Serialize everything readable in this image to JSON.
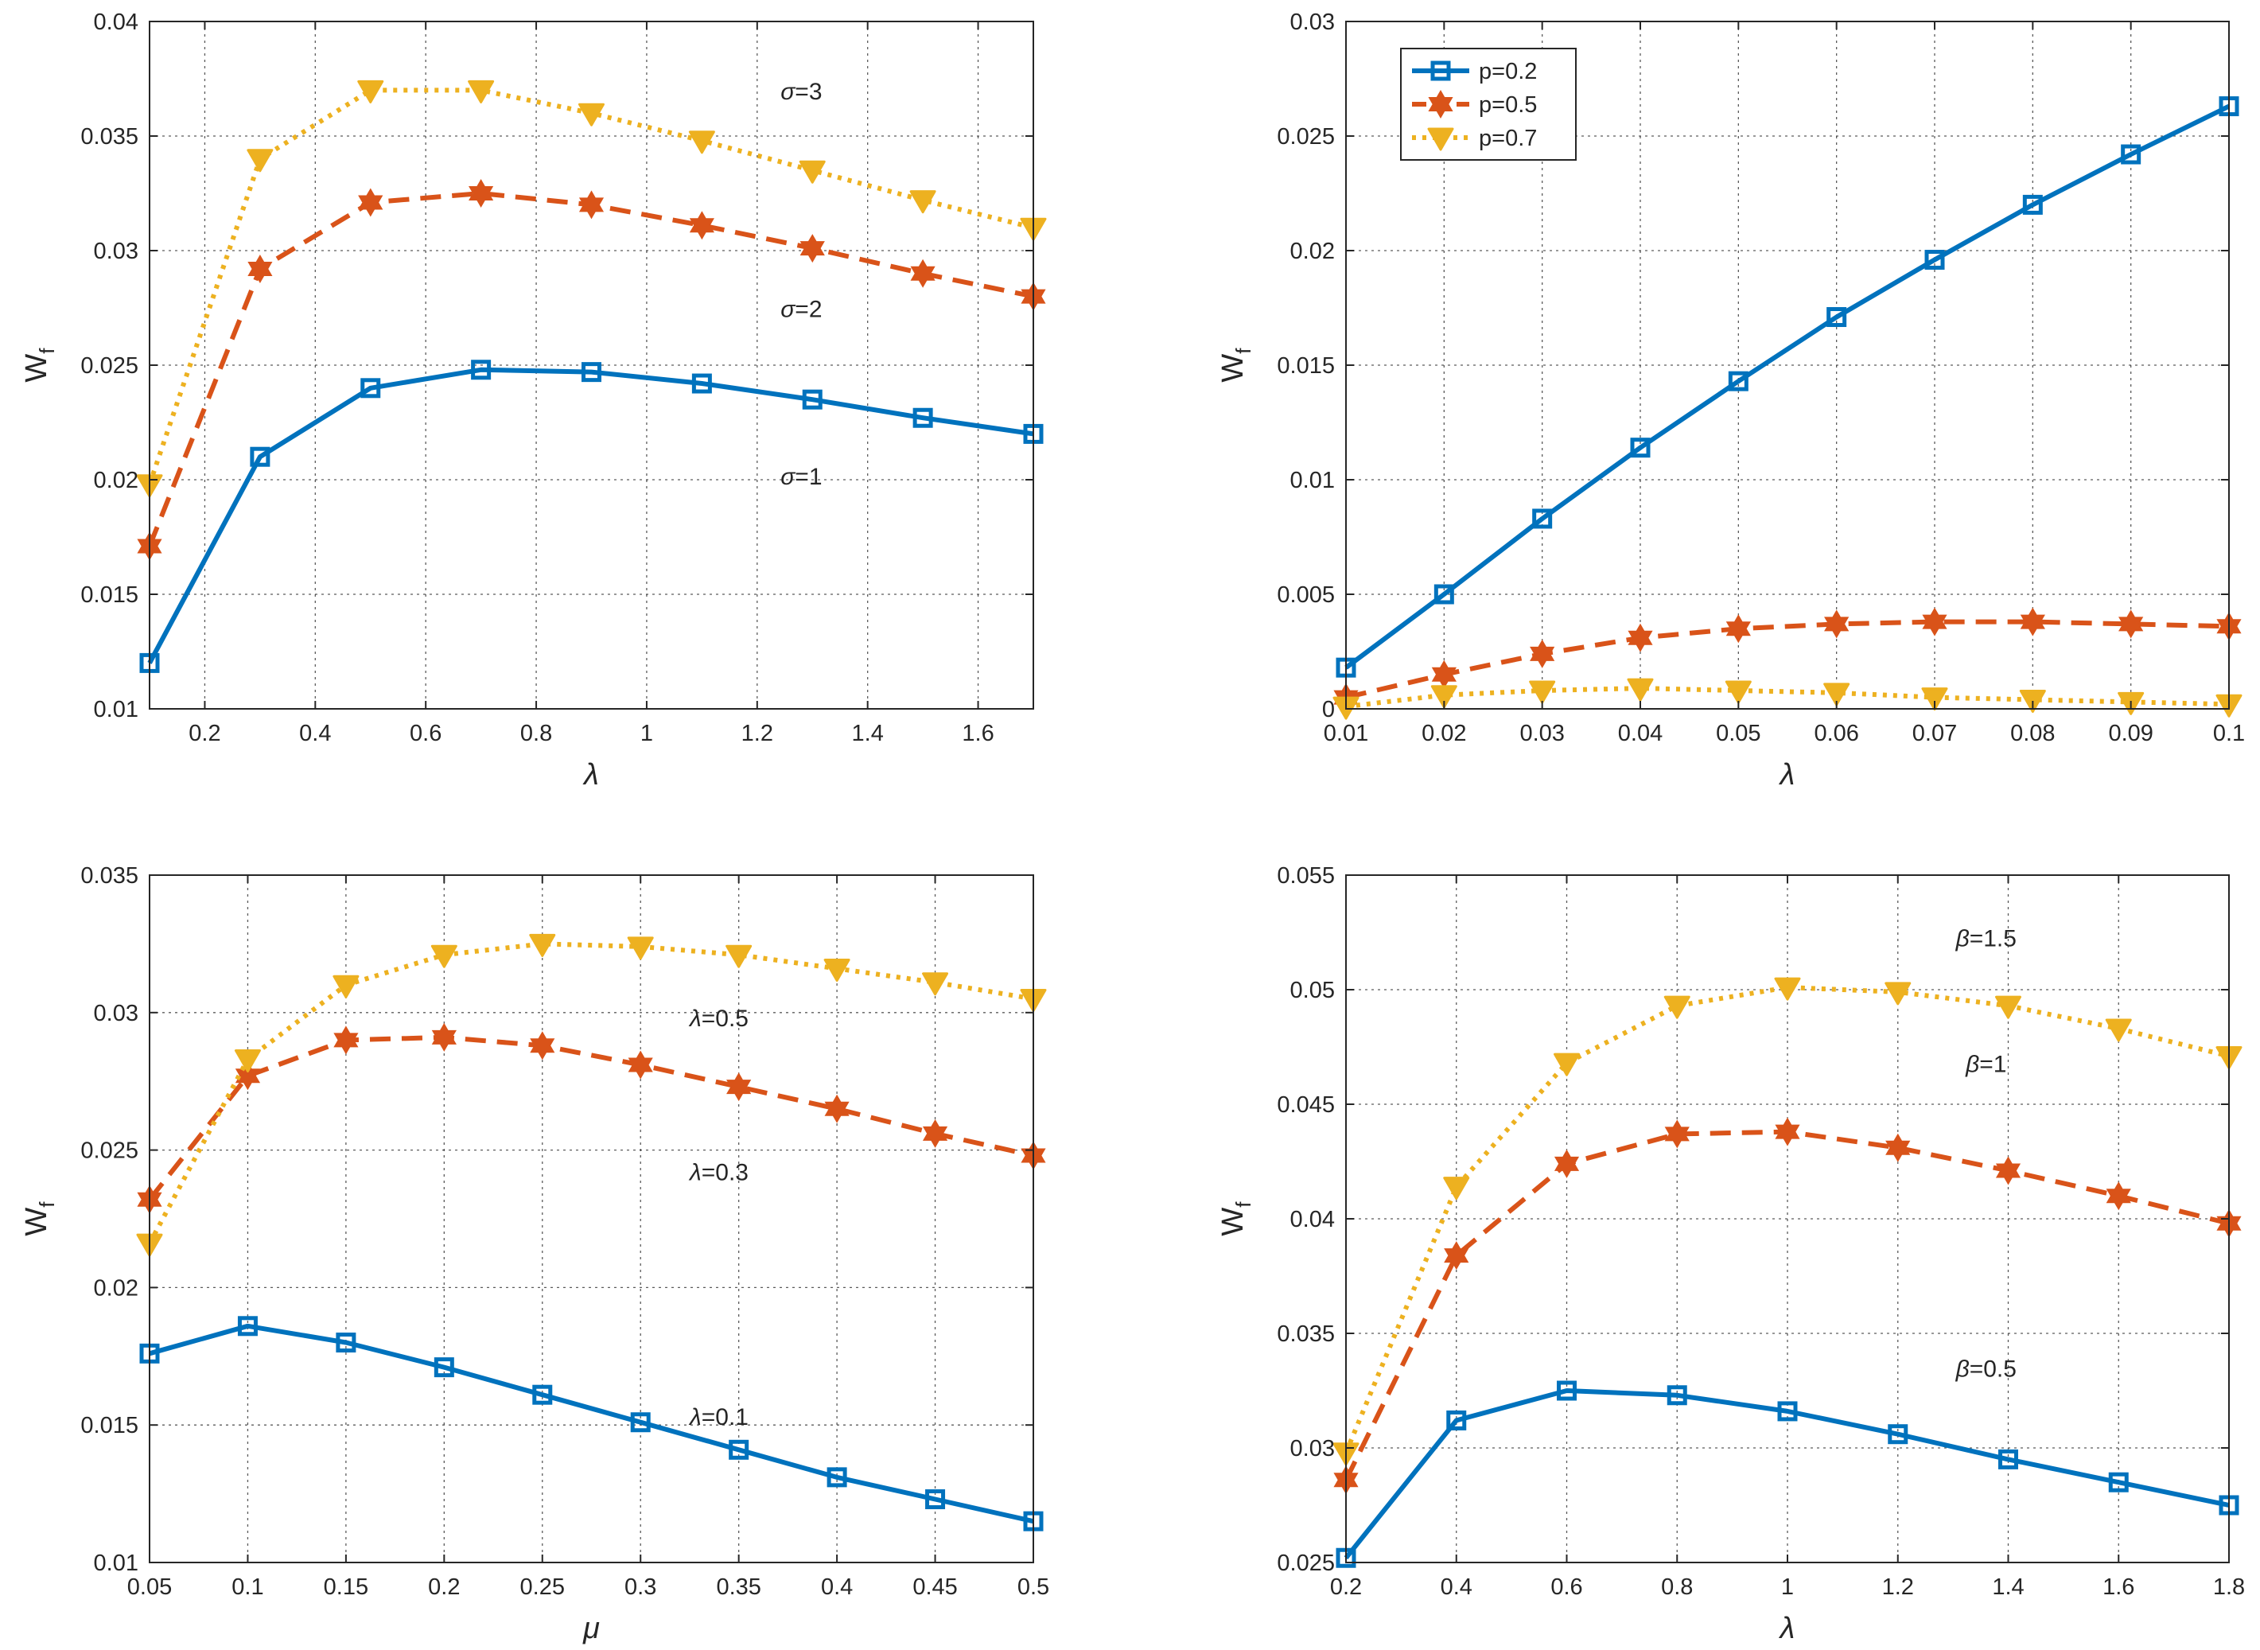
{
  "colors": {
    "s1": "#0072BD",
    "s2": "#D95319",
    "s3": "#EDB120",
    "grid": "#262626",
    "axis": "#262626"
  },
  "chart_data": [
    {
      "type": "line",
      "xlabel": "λ",
      "ylabel": "W",
      "ylabel_sub": "f",
      "xlim": [
        0.1,
        1.7
      ],
      "ylim": [
        0.01,
        0.04
      ],
      "xticks": [
        0.2,
        0.4,
        0.6,
        0.8,
        1,
        1.2,
        1.4,
        1.6
      ],
      "xticklabels": [
        "0.2",
        "0.4",
        "0.6",
        "0.8",
        "1",
        "1.2",
        "1.4",
        "1.6"
      ],
      "yticks": [
        0.01,
        0.015,
        0.02,
        0.025,
        0.03,
        0.035,
        0.04
      ],
      "yticklabels": [
        "0.01",
        "0.015",
        "0.02",
        "0.025",
        "0.03",
        "0.035",
        "0.04"
      ],
      "x": [
        0.1,
        0.3,
        0.5,
        0.7,
        0.9,
        1.1,
        1.3,
        1.5,
        1.7
      ],
      "series": [
        {
          "name": "σ=1",
          "values": [
            0.012,
            0.021,
            0.024,
            0.0248,
            0.0247,
            0.0242,
            0.0235,
            0.0227,
            0.022
          ]
        },
        {
          "name": "σ=2",
          "values": [
            0.0171,
            0.0292,
            0.0321,
            0.0325,
            0.032,
            0.0311,
            0.0301,
            0.029,
            0.028
          ]
        },
        {
          "name": "σ=3",
          "values": [
            0.0198,
            0.034,
            0.037,
            0.037,
            0.036,
            0.0348,
            0.0335,
            0.0322,
            0.031
          ]
        }
      ],
      "annotations": [
        {
          "sym": "σ",
          "text": "=3",
          "x": 1.28,
          "y": 0.0366
        },
        {
          "sym": "σ",
          "text": "=2",
          "x": 1.28,
          "y": 0.0271
        },
        {
          "sym": "σ",
          "text": "=1",
          "x": 1.28,
          "y": 0.0198
        }
      ]
    },
    {
      "type": "line",
      "xlabel": "λ",
      "ylabel": "W",
      "ylabel_sub": "f",
      "xlim": [
        0.01,
        0.1
      ],
      "ylim": [
        0,
        0.03
      ],
      "xticks": [
        0.01,
        0.02,
        0.03,
        0.04,
        0.05,
        0.06,
        0.07,
        0.08,
        0.09,
        0.1
      ],
      "xticklabels": [
        "0.01",
        "0.02",
        "0.03",
        "0.04",
        "0.05",
        "0.06",
        "0.07",
        "0.08",
        "0.09",
        "0.1"
      ],
      "yticks": [
        0,
        0.005,
        0.01,
        0.015,
        0.02,
        0.025,
        0.03
      ],
      "yticklabels": [
        "0",
        "0.005",
        "0.01",
        "0.015",
        "0.02",
        "0.025",
        "0.03"
      ],
      "x": [
        0.01,
        0.02,
        0.03,
        0.04,
        0.05,
        0.06,
        0.07,
        0.08,
        0.09,
        0.1
      ],
      "series": [
        {
          "name": "p=0.2",
          "values": [
            0.0018,
            0.005,
            0.0083,
            0.0114,
            0.0143,
            0.0171,
            0.0196,
            0.022,
            0.0242,
            0.0263
          ]
        },
        {
          "name": "p=0.5",
          "values": [
            0.0005,
            0.0015,
            0.0024,
            0.0031,
            0.0035,
            0.0037,
            0.0038,
            0.0038,
            0.0037,
            0.0036
          ]
        },
        {
          "name": "p=0.7",
          "values": [
            0.0001,
            0.0006,
            0.0008,
            0.0009,
            0.0008,
            0.0007,
            0.0005,
            0.0004,
            0.0003,
            0.0002
          ]
        }
      ],
      "legend": {
        "position": "top-left",
        "entries": [
          "p=0.2",
          "p=0.5",
          "p=0.7"
        ]
      }
    },
    {
      "type": "line",
      "xlabel": "μ",
      "ylabel": "W",
      "ylabel_sub": "f",
      "xlim": [
        0.05,
        0.5
      ],
      "ylim": [
        0.01,
        0.035
      ],
      "xticks": [
        0.05,
        0.1,
        0.15,
        0.2,
        0.25,
        0.3,
        0.35,
        0.4,
        0.45,
        0.5
      ],
      "xticklabels": [
        "0.05",
        "0.1",
        "0.15",
        "0.2",
        "0.25",
        "0.3",
        "0.35",
        "0.4",
        "0.45",
        "0.5"
      ],
      "yticks": [
        0.01,
        0.015,
        0.02,
        0.025,
        0.03,
        0.035
      ],
      "yticklabels": [
        "0.01",
        "0.015",
        "0.02",
        "0.025",
        "0.03",
        "0.035"
      ],
      "x": [
        0.05,
        0.1,
        0.15,
        0.2,
        0.25,
        0.3,
        0.35,
        0.4,
        0.45,
        0.5
      ],
      "series": [
        {
          "name": "λ=0.1",
          "values": [
            0.0176,
            0.0186,
            0.018,
            0.0171,
            0.0161,
            0.0151,
            0.0141,
            0.0131,
            0.0123,
            0.0115
          ]
        },
        {
          "name": "λ=0.3",
          "values": [
            0.0232,
            0.0277,
            0.029,
            0.0291,
            0.0288,
            0.0281,
            0.0273,
            0.0265,
            0.0256,
            0.0248
          ]
        },
        {
          "name": "λ=0.5",
          "values": [
            0.0216,
            0.0283,
            0.031,
            0.0321,
            0.0325,
            0.0324,
            0.0321,
            0.0316,
            0.0311,
            0.0305
          ]
        }
      ],
      "annotations": [
        {
          "sym": "λ",
          "text": "=0.5",
          "x": 0.34,
          "y": 0.0295
        },
        {
          "sym": "λ",
          "text": "=0.3",
          "x": 0.34,
          "y": 0.0239
        },
        {
          "sym": "λ",
          "text": "=0.1",
          "x": 0.34,
          "y": 0.015
        }
      ]
    },
    {
      "type": "line",
      "xlabel": "λ",
      "ylabel": "W",
      "ylabel_sub": "f",
      "xlim": [
        0.2,
        1.8
      ],
      "ylim": [
        0.025,
        0.055
      ],
      "xticks": [
        0.2,
        0.4,
        0.6,
        0.8,
        1,
        1.2,
        1.4,
        1.6,
        1.8
      ],
      "xticklabels": [
        "0.2",
        "0.4",
        "0.6",
        "0.8",
        "1",
        "1.2",
        "1.4",
        "1.6",
        "1.8"
      ],
      "yticks": [
        0.025,
        0.03,
        0.035,
        0.04,
        0.045,
        0.05,
        0.055
      ],
      "yticklabels": [
        "0.025",
        "0.03",
        "0.035",
        "0.04",
        "0.045",
        "0.05",
        "0.055"
      ],
      "x": [
        0.2,
        0.4,
        0.6,
        0.8,
        1.0,
        1.2,
        1.4,
        1.6,
        1.8
      ],
      "series": [
        {
          "name": "β=0.5",
          "values": [
            0.0252,
            0.0312,
            0.0325,
            0.0323,
            0.0316,
            0.0306,
            0.0295,
            0.0285,
            0.0275
          ]
        },
        {
          "name": "β=1",
          "values": [
            0.0286,
            0.0384,
            0.0424,
            0.0437,
            0.0438,
            0.0431,
            0.0421,
            0.041,
            0.0398
          ]
        },
        {
          "name": "β=1.5",
          "values": [
            0.0298,
            0.0414,
            0.0468,
            0.0493,
            0.0501,
            0.0499,
            0.0493,
            0.0483,
            0.0471
          ]
        }
      ],
      "annotations": [
        {
          "sym": "β",
          "text": "=1.5",
          "x": 1.36,
          "y": 0.0519
        },
        {
          "sym": "β",
          "text": "=1",
          "x": 1.36,
          "y": 0.0464
        },
        {
          "sym": "β",
          "text": "=0.5",
          "x": 1.36,
          "y": 0.0331
        }
      ]
    }
  ]
}
